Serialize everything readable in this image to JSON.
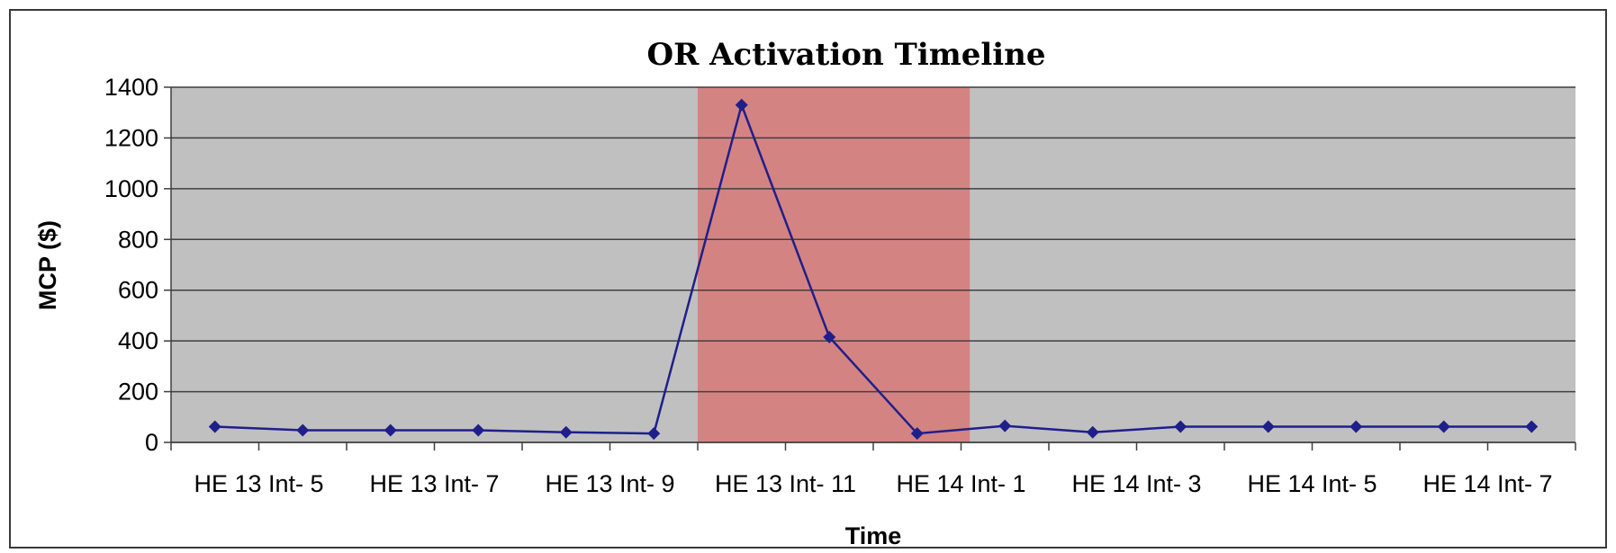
{
  "chart_data": {
    "type": "line",
    "title": "OR Activation Timeline",
    "xlabel": "Time",
    "ylabel": "MCP ($)",
    "ylim": [
      0,
      1400
    ],
    "y_ticks": [
      0,
      200,
      400,
      600,
      800,
      1000,
      1200,
      1400
    ],
    "x_tick_labels": [
      "HE 13 Int- 5",
      "HE 13 Int- 7",
      "HE 13 Int- 9",
      "HE 13 Int- 11",
      "HE 14 Int- 1",
      "HE 14 Int- 3",
      "HE 14 Int- 5",
      "HE 14 Int- 7"
    ],
    "grid": true,
    "legend": "none",
    "highlight_region": {
      "from_point": 6,
      "to_point": 9,
      "color": "#d48383"
    },
    "series": [
      {
        "color": "#1f1f8a",
        "values": [
          62,
          48,
          48,
          48,
          40,
          35,
          1330,
          415,
          35,
          65,
          40,
          62,
          62,
          62,
          62,
          62
        ]
      }
    ],
    "plot_background": "#c0c0c0"
  }
}
